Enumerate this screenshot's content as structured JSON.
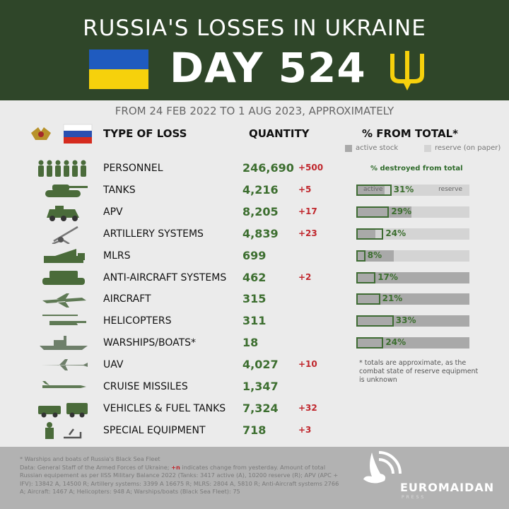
{
  "header": {
    "title": "RUSSIA'S LOSSES IN UKRAINE",
    "day": "DAY 524",
    "flag_colors": [
      "#1f5bbf",
      "#f6d10c"
    ],
    "trident_color": "#f6d10c",
    "icon": "trident-icon"
  },
  "subtitle": "FROM 24 FEB 2022 TO 1 AUG 2023, APPROXIMATELY",
  "columns": {
    "type": "TYPE OF LOSS",
    "quantity": "QUANTITY",
    "percent": "% FROM TOTAL*"
  },
  "legend": {
    "active": "active stock",
    "reserve": "reserve (on paper)",
    "destroyed": "% destroyed from total",
    "bar_active_label": "active",
    "bar_reserve_label": "reserve"
  },
  "colors": {
    "accent_green": "#3c6e2f",
    "change_red": "#c0272d",
    "header_bg": "#2f4629",
    "active": "#a9a9a9",
    "reserve": "#d4d4d4"
  },
  "rows": [
    {
      "icon": "soldiers-icon",
      "label": "PERSONNEL",
      "qty": "246,690",
      "chg": "+500"
    },
    {
      "icon": "tank-icon",
      "label": "TANKS",
      "qty": "4,216",
      "chg": "+5",
      "pct": 31,
      "active_share": 25
    },
    {
      "icon": "apv-icon",
      "label": "APV",
      "qty": "8,205",
      "chg": "+17",
      "pct": 29,
      "active_share": 49
    },
    {
      "icon": "artillery-icon",
      "label": "ARTILLERY SYSTEMS",
      "qty": "4,839",
      "chg": "+23",
      "pct": 24,
      "active_share": 17
    },
    {
      "icon": "mlrs-icon",
      "label": "MLRS",
      "qty": "699",
      "chg": "",
      "pct": 8,
      "active_share": 33
    },
    {
      "icon": "anti-aircraft-icon",
      "label": "ANTI-AIRCRAFT SYSTEMS",
      "qty": "462",
      "chg": "+2",
      "pct": 17,
      "active_share": 100
    },
    {
      "icon": "aircraft-icon",
      "label": "AIRCRAFT",
      "qty": "315",
      "chg": "",
      "pct": 21,
      "active_share": 100
    },
    {
      "icon": "helicopter-icon",
      "label": "HELICOPTERS",
      "qty": "311",
      "chg": "",
      "pct": 33,
      "active_share": 100
    },
    {
      "icon": "warship-icon",
      "label": "WARSHIPS/BOATS*",
      "qty": "18",
      "chg": "",
      "pct": 24,
      "active_share": 100
    },
    {
      "icon": "uav-icon",
      "label": "UAV",
      "qty": "4,027",
      "chg": "+10"
    },
    {
      "icon": "cruise-missile-icon",
      "label": "CRUISE MISSILES",
      "qty": "1,347",
      "chg": ""
    },
    {
      "icon": "vehicles-icon",
      "label": "VEHICLES & FUEL TANKS",
      "qty": "7,324",
      "chg": "+32"
    },
    {
      "icon": "special-equipment-icon",
      "label": "SPECIAL EQUIPMENT",
      "qty": "718",
      "chg": "+3"
    }
  ],
  "note": "* totals are approximate, as the combat state of reserve equipment is unknown",
  "footer": {
    "line1": "* Warships and boats of Russia's Black Sea Fleet",
    "line2a": "Data: General Staff of the Armed Forces of Ukraine;",
    "plus_n": "+n",
    "line2b": "indicates change from yesterday. Amount of total Russian equipement as per IISS Military Balance 2022 (Tanks: 3417 active (A), 10200 reserve (R); APV (APC + IFV): 13842 A, 14500 R; Artillery systems: 3399 A 16675 R; MLRS: 2804 A, 5810 R; Anti-Aircraft systems 2766 A; Aircraft: 1467 A; Helicopters: 948 A; Warships/boats (Black Sea Fleet): 75",
    "logo": "EUROMAIDAN",
    "logo_sub": "PRESS"
  }
}
